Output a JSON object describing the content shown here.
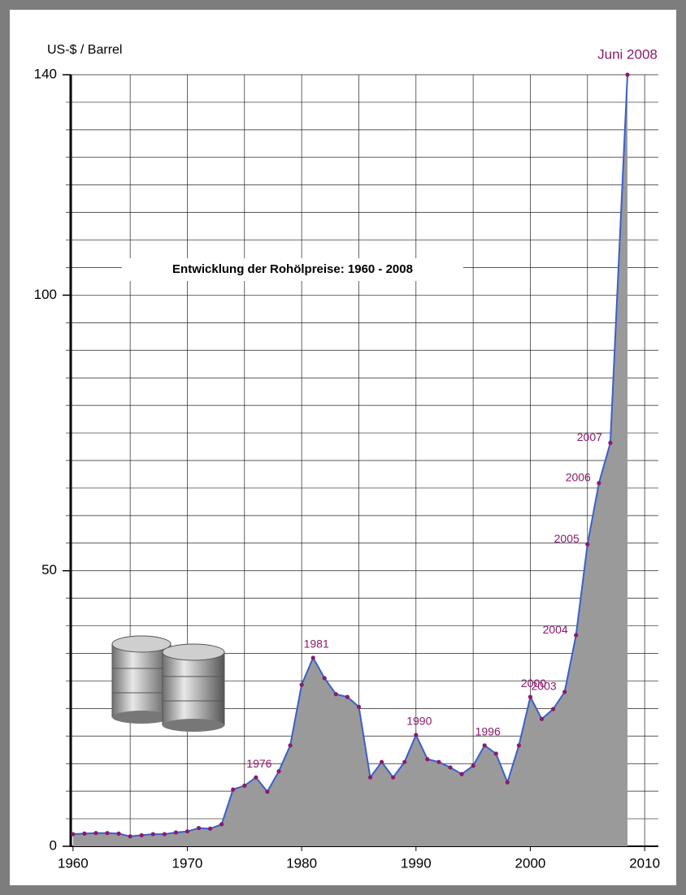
{
  "chart_data": {
    "type": "area",
    "title": "Entwicklung der Rohölpreise: 1960 - 2008",
    "ylabel": "US-$ / Barrel",
    "x": [
      1960,
      1961,
      1962,
      1963,
      1964,
      1965,
      1966,
      1967,
      1968,
      1969,
      1970,
      1971,
      1972,
      1973,
      1974,
      1975,
      1976,
      1977,
      1978,
      1979,
      1980,
      1981,
      1982,
      1983,
      1984,
      1985,
      1986,
      1987,
      1988,
      1989,
      1990,
      1991,
      1992,
      1993,
      1994,
      1995,
      1996,
      1997,
      1998,
      1999,
      2000,
      2001,
      2002,
      2003,
      2004,
      2005,
      2006,
      2007,
      2008.5
    ],
    "values": [
      2.2,
      2.3,
      2.4,
      2.4,
      2.3,
      1.8,
      2.0,
      2.2,
      2.2,
      2.5,
      2.7,
      3.3,
      3.2,
      4.0,
      10.3,
      11.0,
      12.5,
      9.9,
      13.6,
      18.3,
      29.3,
      34.2,
      30.5,
      27.6,
      27.1,
      25.3,
      12.5,
      15.3,
      12.5,
      15.3,
      20.2,
      15.8,
      15.3,
      14.3,
      13.1,
      14.6,
      18.3,
      16.8,
      11.6,
      18.3,
      27.1,
      23.1,
      24.9,
      28.0,
      38.3,
      54.8,
      65.9,
      73.2,
      140
    ],
    "point_labels": [
      null,
      null,
      null,
      null,
      null,
      null,
      null,
      null,
      null,
      null,
      null,
      null,
      null,
      null,
      null,
      null,
      "1976",
      null,
      null,
      null,
      null,
      "1981",
      null,
      null,
      null,
      null,
      null,
      null,
      null,
      null,
      "1990",
      null,
      null,
      null,
      null,
      null,
      "1996",
      null,
      null,
      null,
      "2000",
      null,
      null,
      "2003",
      "2004",
      "2005",
      "2006",
      "2007",
      "Juni 2008"
    ],
    "line_color": "#3a5fcd",
    "fill_color": "#9a9a9a",
    "marker_color": "#8b1a6b",
    "xlim": [
      1959.8,
      2011.2
    ],
    "ylim": [
      0,
      140
    ],
    "xticks": [
      1960,
      1970,
      1980,
      1990,
      2000,
      2010
    ],
    "yticks": [
      0,
      50,
      100,
      140
    ],
    "xgrid": [
      1965,
      1970,
      1975,
      1980,
      1985,
      1990,
      1995,
      2000,
      2005,
      2010
    ],
    "ygrid": [
      5,
      10,
      15,
      20,
      25,
      30,
      35,
      40,
      45,
      50,
      55,
      60,
      65,
      70,
      75,
      80,
      85,
      90,
      95,
      100,
      105,
      110,
      115,
      120,
      125,
      130,
      135,
      140
    ],
    "grid": true
  }
}
